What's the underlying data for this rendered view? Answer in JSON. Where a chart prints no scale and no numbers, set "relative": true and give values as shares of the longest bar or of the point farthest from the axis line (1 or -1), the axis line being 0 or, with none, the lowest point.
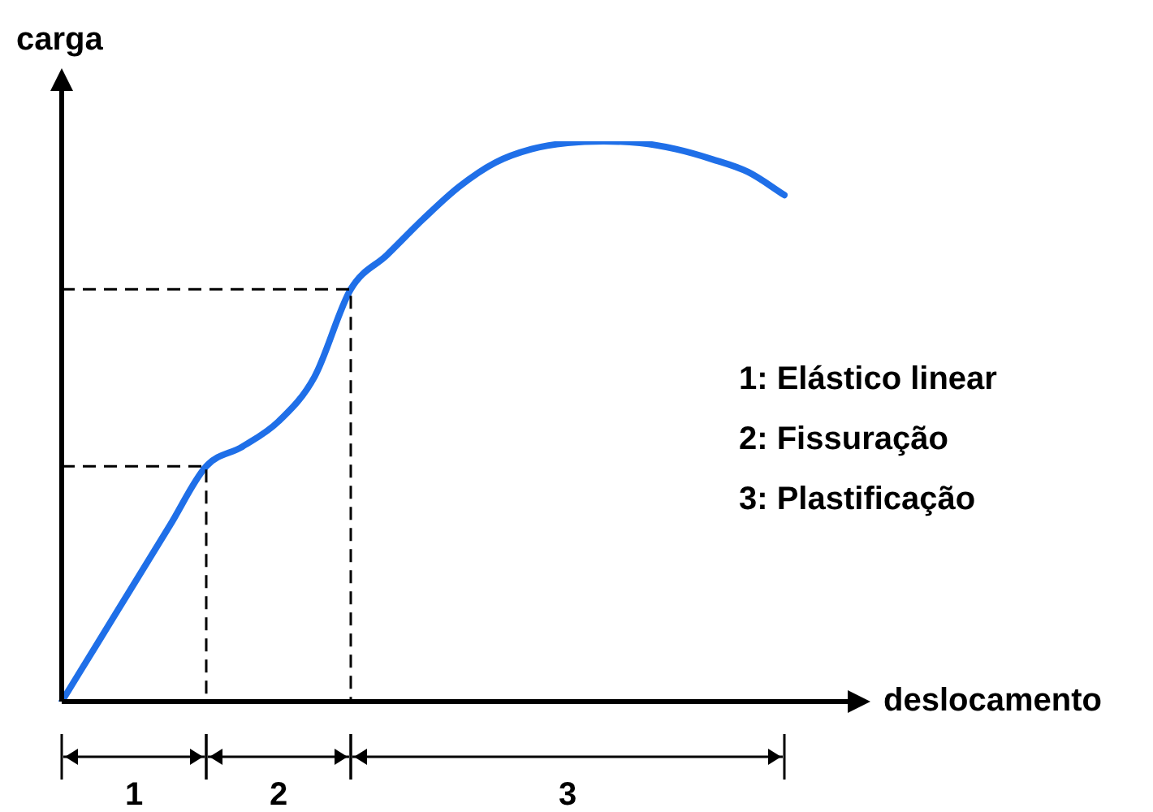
{
  "chart_data": {
    "type": "line",
    "relative": true,
    "xlabel": "deslocamento",
    "ylabel": "carga",
    "categories": [
      null,
      null,
      null,
      null,
      null,
      null,
      null,
      null,
      null,
      null,
      null,
      null,
      null,
      null,
      null,
      null,
      null,
      null,
      null,
      null,
      null
    ],
    "series": [
      {
        "color": "#1f6fe8",
        "values": [
          0,
          0.105,
          0.21,
          0.315,
          0.42,
          0.455,
          0.5,
          0.58,
          0.736,
          0.797,
          0.861,
          0.919,
          0.962,
          0.986,
          0.997,
          1,
          0.997,
          0.986,
          0.968,
          0.945,
          0.904
        ]
      }
    ],
    "ref_lines": [
      {
        "axis": "y",
        "value": 0.42,
        "line_style": "dashed",
        "color": "#000000"
      },
      {
        "axis": "y",
        "value": 0.736,
        "line_style": "dashed",
        "color": "#000000"
      }
    ],
    "annotations": [
      "1",
      "2",
      "3",
      "1: Elástico linear",
      "2: Fissuração",
      "3: Plastificação"
    ],
    "marker": "none",
    "line_style": "solid",
    "grid": false,
    "legend": false
  }
}
